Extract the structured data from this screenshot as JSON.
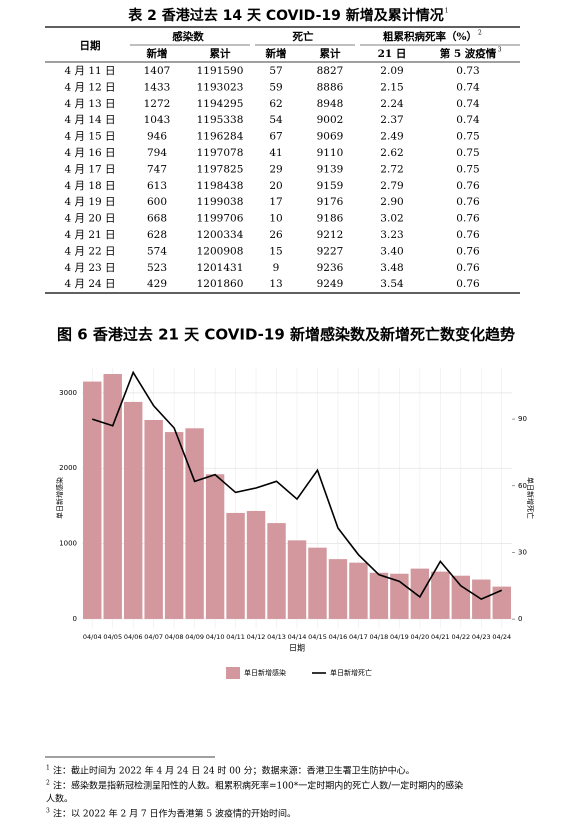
{
  "table": {
    "title": "表 2  香港过去 14 天 COVID-19 新增及累计情况",
    "title_note": "1",
    "header": {
      "date": "日期",
      "infections": "感染数",
      "deaths": "死亡",
      "cfr": "粗累积病死率（%）",
      "cfr_note": "2",
      "sub": [
        "新增",
        "累计",
        "新增",
        "累计",
        "21 日",
        "第 5 波疫情"
      ],
      "sub_note": "3"
    },
    "rows": [
      [
        "4 月 11 日",
        "1407",
        "1191590",
        "57",
        "8827",
        "2.09",
        "0.73"
      ],
      [
        "4 月 12 日",
        "1433",
        "1193023",
        "59",
        "8886",
        "2.15",
        "0.74"
      ],
      [
        "4 月 13 日",
        "1272",
        "1194295",
        "62",
        "8948",
        "2.24",
        "0.74"
      ],
      [
        "4 月 14 日",
        "1043",
        "1195338",
        "54",
        "9002",
        "2.37",
        "0.74"
      ],
      [
        "4 月 15 日",
        "946",
        "1196284",
        "67",
        "9069",
        "2.49",
        "0.75"
      ],
      [
        "4 月 16 日",
        "794",
        "1197078",
        "41",
        "9110",
        "2.62",
        "0.75"
      ],
      [
        "4 月 17 日",
        "747",
        "1197825",
        "29",
        "9139",
        "2.72",
        "0.75"
      ],
      [
        "4 月 18 日",
        "613",
        "1198438",
        "20",
        "9159",
        "2.79",
        "0.76"
      ],
      [
        "4 月 19 日",
        "600",
        "1199038",
        "17",
        "9176",
        "2.90",
        "0.76"
      ],
      [
        "4 月 20 日",
        "668",
        "1199706",
        "10",
        "9186",
        "3.02",
        "0.76"
      ],
      [
        "4 月 21 日",
        "628",
        "1200334",
        "26",
        "9212",
        "3.23",
        "0.76"
      ],
      [
        "4 月 22 日",
        "574",
        "1200908",
        "15",
        "9227",
        "3.40",
        "0.76"
      ],
      [
        "4 月 23 日",
        "523",
        "1201431",
        "9",
        "9236",
        "3.48",
        "0.76"
      ],
      [
        "4 月 24 日",
        "429",
        "1201860",
        "13",
        "9249",
        "3.54",
        "0.76"
      ]
    ]
  },
  "chart_data": {
    "type": "bar",
    "title": "图 6  香港过去 21 天 COVID-19 新增感染数及新增死亡数变化趋势",
    "x": [
      "04/04",
      "04/05",
      "04/06",
      "04/07",
      "04/08",
      "04/09",
      "04/10",
      "04/11",
      "04/12",
      "04/13",
      "04/14",
      "04/15",
      "04/16",
      "04/17",
      "04/18",
      "04/19",
      "04/20",
      "04/21",
      "04/22",
      "04/23",
      "04/24"
    ],
    "series": [
      {
        "name": "单日新增感染",
        "type": "bar",
        "color": "#d3989e",
        "values": [
          3150,
          3250,
          2880,
          2640,
          2480,
          2530,
          1920,
          1407,
          1433,
          1272,
          1043,
          946,
          794,
          747,
          613,
          600,
          668,
          628,
          574,
          523,
          429
        ]
      },
      {
        "name": "单日新增死亡",
        "type": "line",
        "color": "#000000",
        "axis": "y2",
        "values": [
          90,
          87,
          111,
          96,
          86,
          62,
          65,
          57,
          59,
          62,
          54,
          67,
          41,
          29,
          20,
          17,
          10,
          26,
          15,
          9,
          13
        ]
      }
    ],
    "xlabel": "日期",
    "ylabel": "单日新增感染",
    "y2label": "单日新增死亡",
    "ylim": [
      -120,
      3330
    ],
    "yticks": [
      0,
      1000,
      2000,
      3000
    ],
    "y2lim": [
      -4,
      113
    ],
    "y2ticks": [
      0,
      30,
      60,
      90
    ],
    "grid": true
  },
  "footnotes": [
    {
      "mark": "1",
      "lines": [
        "注：截止时间为 2022 年 4 月 24 日 24 时 00 分；数据来源：香港卫生署卫生防护中心。"
      ]
    },
    {
      "mark": "2",
      "lines": [
        "注：感染数是指新冠检测呈阳性的人数。粗累积病死率=100*一定时期内的死亡人数/一定时期内的感染",
        "人数。"
      ]
    },
    {
      "mark": "3",
      "lines": [
        "注：以 2022 年 2 月 7 日作为香港第 5 波疫情的开始时间。"
      ]
    }
  ]
}
